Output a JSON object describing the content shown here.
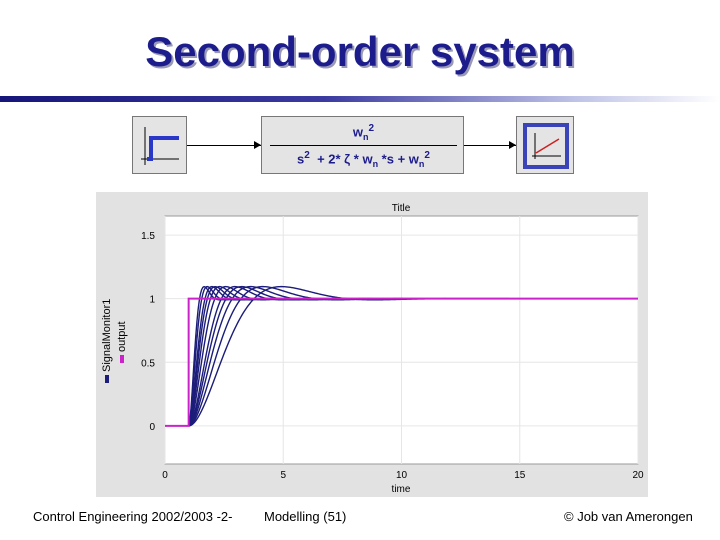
{
  "slide": {
    "title": "Second-order system",
    "footer_left": "Control Engineering 2002/2003 -2-",
    "footer_center": "Modelling  (51)",
    "footer_right": "© Job van Amerongen"
  },
  "diagram": {
    "numerator": "wn2",
    "denominator": "s2  + 2*ζ * wn *s + wn2"
  },
  "chart_data": {
    "type": "line",
    "title": "Title",
    "xlabel": "time",
    "ylabel": "",
    "legend": [
      "SignalMonitor1",
      "output"
    ],
    "xlim": [
      0,
      20
    ],
    "ylim": [
      -0.3,
      1.65
    ],
    "xticks": [
      0,
      5,
      10,
      15,
      20
    ],
    "yticks": [
      0,
      0.5,
      1,
      1.5
    ],
    "grid": true,
    "colors": {
      "series": "#1c1c7a",
      "step": "#cc22cc",
      "plot_bg": "#ffffff",
      "grid": "#e6e6e6"
    },
    "step_time": 1,
    "damping": 0.6,
    "natural_frequencies": [
      1,
      1.25,
      1.5,
      1.75,
      2,
      2.5,
      3,
      3.5,
      4,
      5,
      6
    ],
    "step_signal": {
      "x": [
        0,
        1,
        1,
        20
      ],
      "y": [
        0,
        0,
        1,
        1
      ]
    }
  }
}
